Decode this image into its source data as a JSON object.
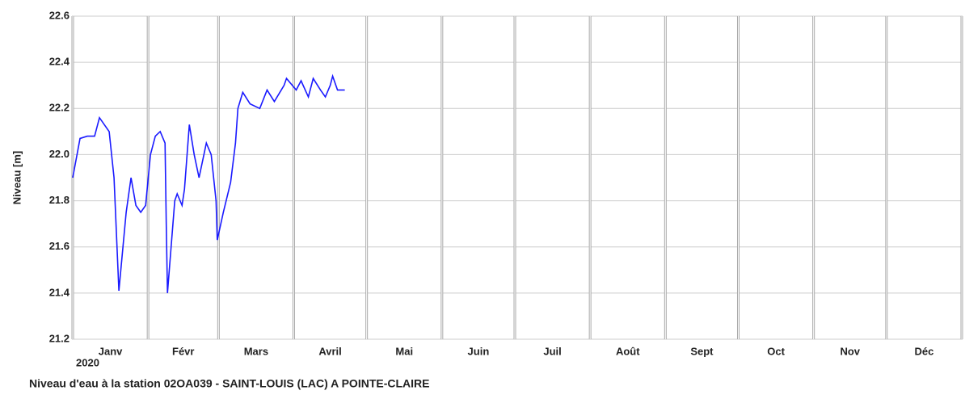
{
  "chart_data": {
    "type": "line",
    "title": "Niveau d'eau à la station 02OA039 - SAINT-LOUIS (LAC) A POINTE-CLAIRE",
    "ylabel": "Niveau [m]",
    "year_label": "2020",
    "categories": [
      "Janv",
      "Févr",
      "Mars",
      "Avril",
      "Mai",
      "Juin",
      "Juil",
      "Août",
      "Sept",
      "Oct",
      "Nov",
      "Déc"
    ],
    "xlim": [
      0,
      366
    ],
    "xticks": [
      0,
      31,
      60,
      91,
      121,
      152,
      182,
      213,
      244,
      274,
      305,
      335,
      366
    ],
    "ylim": [
      21.2,
      22.6
    ],
    "yticks": [
      21.2,
      21.4,
      21.6,
      21.8,
      {
        "value": 22,
        "label": "22.0"
      },
      22.2,
      22.4,
      22.6
    ],
    "grid": true,
    "series": [
      {
        "name": "Niveau",
        "color": "#1a1aff",
        "x": [
          0,
          3,
          6,
          9,
          11,
          15,
          17,
          19,
          22,
          24,
          26,
          28,
          30,
          32,
          34,
          36,
          38,
          38.5,
          39,
          42,
          43,
          45,
          46,
          48,
          50,
          52,
          55,
          57,
          59,
          59.5,
          62,
          65,
          67,
          68,
          70,
          73,
          77,
          80,
          83,
          87,
          88,
          92,
          94,
          97,
          99,
          102,
          104,
          106,
          107,
          109,
          112
        ],
        "values": [
          21.9,
          22.07,
          22.08,
          22.08,
          22.16,
          22.1,
          21.9,
          21.41,
          21.75,
          21.9,
          21.78,
          21.75,
          21.78,
          22.0,
          22.08,
          22.1,
          22.05,
          21.7,
          21.4,
          21.8,
          21.83,
          21.78,
          21.85,
          22.13,
          22.0,
          21.9,
          22.05,
          22.0,
          21.8,
          21.63,
          21.75,
          21.88,
          22.05,
          22.2,
          22.27,
          22.22,
          22.2,
          22.28,
          22.23,
          22.3,
          22.33,
          22.28,
          22.32,
          22.25,
          22.33,
          22.28,
          22.25,
          22.3,
          22.34,
          22.28,
          22.28
        ]
      }
    ]
  }
}
